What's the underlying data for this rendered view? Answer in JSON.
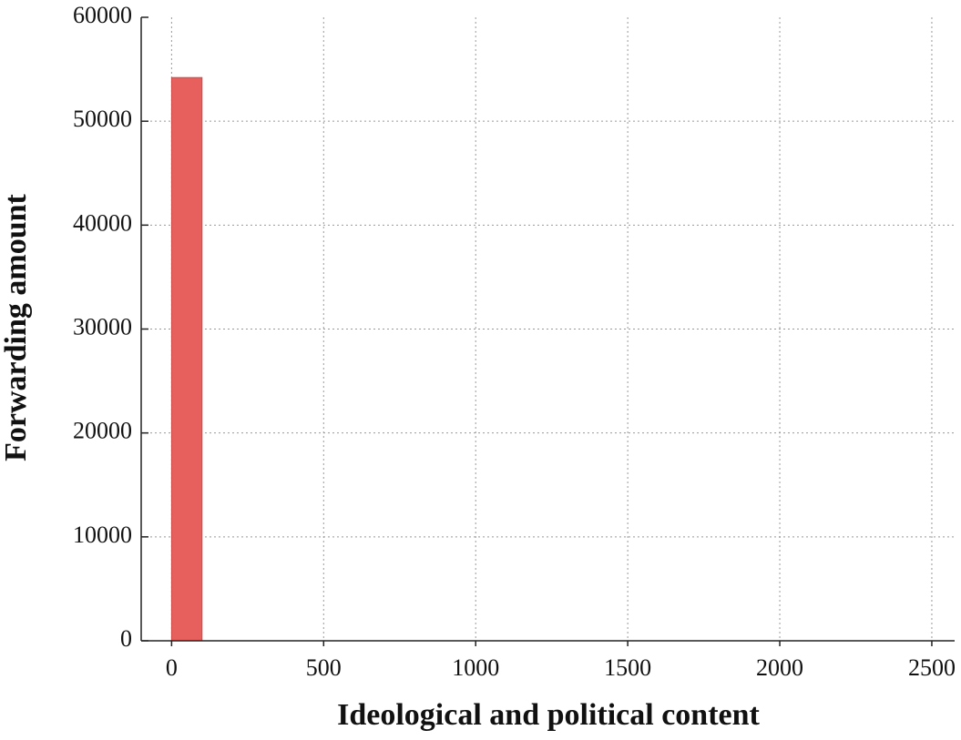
{
  "chart_data": {
    "type": "histogram",
    "x_label": "Ideological and political content",
    "y_label": "Forwarding amount",
    "bins": [
      0,
      100
    ],
    "values": [
      54200
    ],
    "color": "#e8605e",
    "xlim": [
      -100,
      2575
    ],
    "xticks": [
      0,
      500,
      1000,
      1500,
      2000,
      2500
    ],
    "ylim": [
      0,
      60000
    ],
    "yticks": [
      0,
      10000,
      20000,
      30000,
      40000,
      50000,
      60000
    ],
    "grid": true
  }
}
